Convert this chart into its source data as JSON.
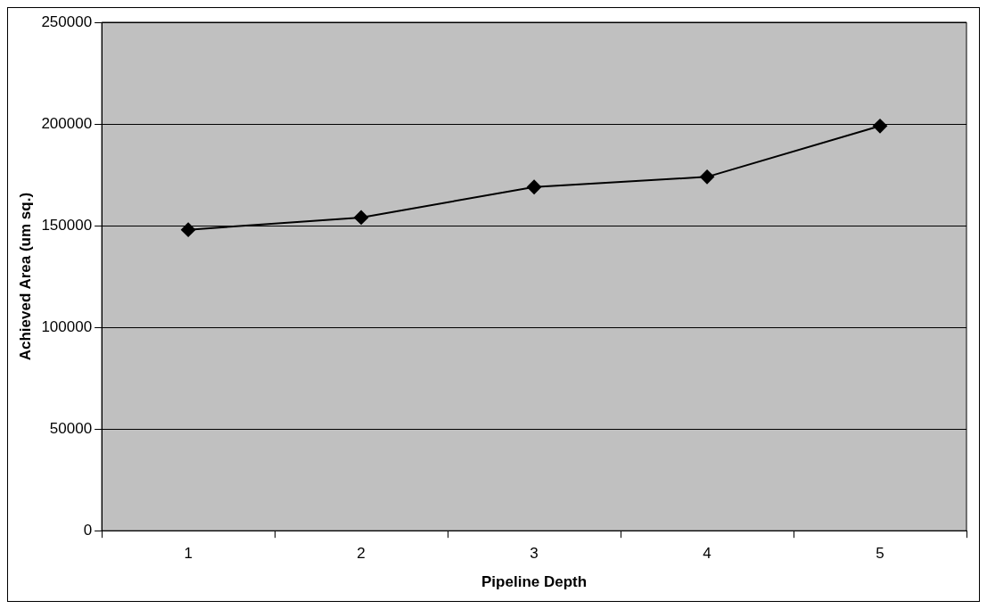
{
  "chart_data": {
    "type": "line",
    "xlabel": "Pipeline Depth",
    "ylabel": "Achieved Area (um sq.)",
    "categories": [
      "1",
      "2",
      "3",
      "4",
      "5"
    ],
    "series": [
      {
        "color": "#000000",
        "values": [
          148000,
          154000,
          169000,
          174000,
          199000
        ]
      }
    ],
    "ylim": [
      0,
      250000
    ],
    "yticks": [
      0,
      50000,
      100000,
      150000,
      200000,
      250000
    ],
    "grid": "y",
    "legend": false,
    "marker": "diamond",
    "line_style": "solid"
  }
}
